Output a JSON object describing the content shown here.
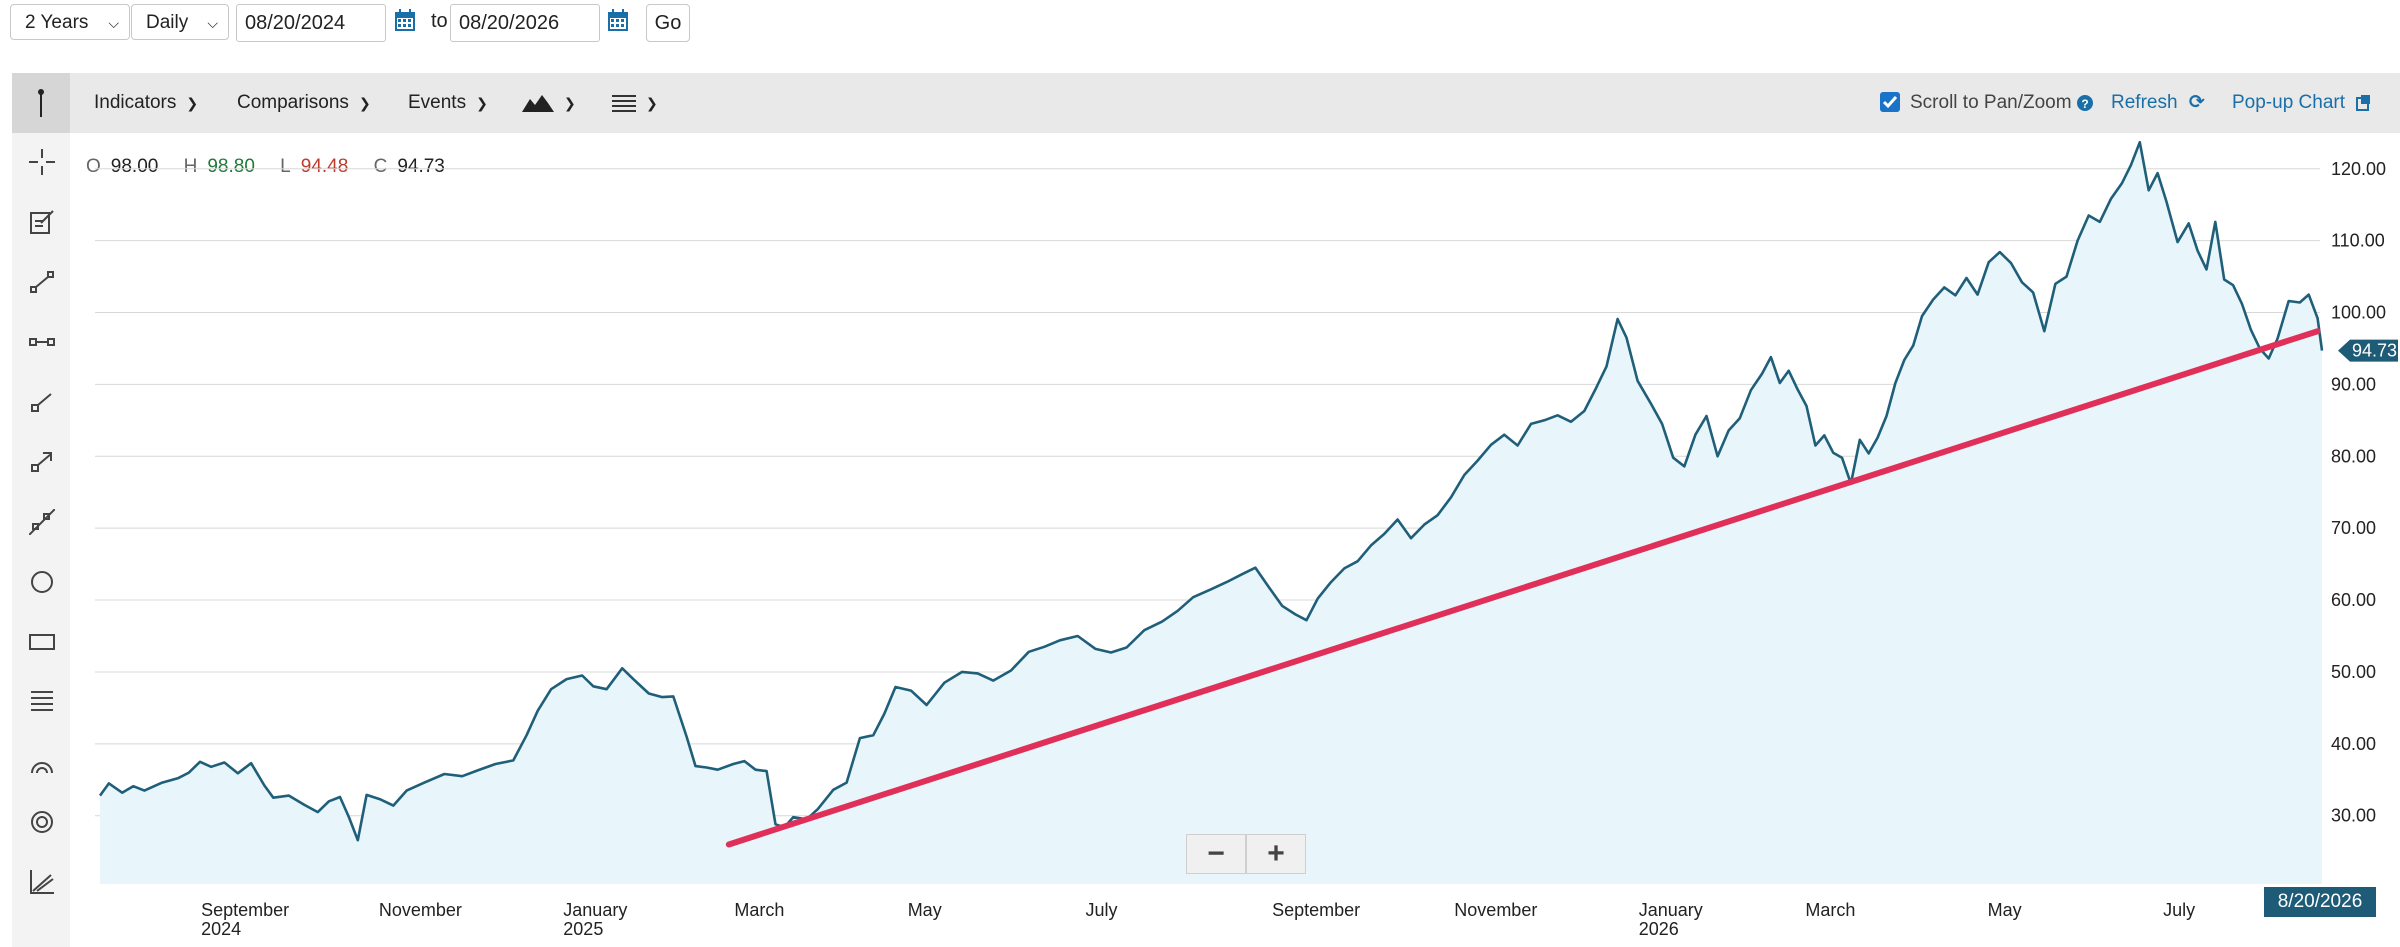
{
  "range_bar": {
    "period": "2 Years",
    "interval": "Daily",
    "start_date": "08/20/2024",
    "to_label": "to",
    "end_date": "08/20/2026",
    "go_label": "Go"
  },
  "toolbar": {
    "indicators": "Indicators",
    "comparisons": "Comparisons",
    "events": "Events",
    "scroll_label": "Scroll to Pan/Zoom",
    "scroll_checked": true,
    "refresh": "Refresh",
    "popup": "Pop-up Chart"
  },
  "sidebar_tools": [
    "pointer-icon",
    "crosshair-icon",
    "note-icon",
    "line-icon",
    "horizontal-segment-icon",
    "ray-icon",
    "arrow-icon",
    "extended-line-icon",
    "circle-icon",
    "rectangle-icon",
    "fibonacci-icon",
    "arc-icon",
    "target-icon",
    "trend-channel-icon"
  ],
  "ohlc": {
    "o_label": "O",
    "open": "98.00",
    "h_label": "H",
    "high": "98.80",
    "l_label": "L",
    "low": "94.48",
    "c_label": "C",
    "close": "94.73",
    "high_color": "#1f7a3a",
    "low_color": "#c0392b"
  },
  "last_price_badge": "94.73",
  "date_badge": "8/20/2026",
  "chart_data": {
    "type": "area",
    "y_ticks": [
      "120.00",
      "110.00",
      "100.00",
      "90.00",
      "80.00",
      "70.00",
      "60.00",
      "50.00",
      "40.00",
      "30.00"
    ],
    "ylim": [
      20.5,
      124
    ],
    "x_ticks": [
      {
        "label": "September",
        "sub": "2024",
        "t": 0.05
      },
      {
        "label": "November",
        "sub": "",
        "t": 0.13
      },
      {
        "label": "January",
        "sub": "2025",
        "t": 0.213
      },
      {
        "label": "March",
        "sub": "",
        "t": 0.29
      },
      {
        "label": "May",
        "sub": "",
        "t": 0.368
      },
      {
        "label": "July",
        "sub": "",
        "t": 0.448
      },
      {
        "label": "September",
        "sub": "",
        "t": 0.532
      },
      {
        "label": "November",
        "sub": "",
        "t": 0.614
      },
      {
        "label": "January",
        "sub": "2026",
        "t": 0.697
      },
      {
        "label": "March",
        "sub": "",
        "t": 0.772
      },
      {
        "label": "May",
        "sub": "",
        "t": 0.854
      },
      {
        "label": "July",
        "sub": "",
        "t": 0.933
      }
    ],
    "series": [
      {
        "line_color": "#1f5f7a",
        "fill_color": "#e8f5fa",
        "points": [
          [
            0,
            32.8
          ],
          [
            0.004,
            34.5
          ],
          [
            0.01,
            33.2
          ],
          [
            0.015,
            34.1
          ],
          [
            0.02,
            33.5
          ],
          [
            0.028,
            34.6
          ],
          [
            0.035,
            35.2
          ],
          [
            0.04,
            36.0
          ],
          [
            0.045,
            37.5
          ],
          [
            0.05,
            36.8
          ],
          [
            0.056,
            37.4
          ],
          [
            0.062,
            35.9
          ],
          [
            0.068,
            37.3
          ],
          [
            0.074,
            34.2
          ],
          [
            0.078,
            32.5
          ],
          [
            0.085,
            32.8
          ],
          [
            0.092,
            31.5
          ],
          [
            0.098,
            30.5
          ],
          [
            0.103,
            32.0
          ],
          [
            0.108,
            32.6
          ],
          [
            0.112,
            29.8
          ],
          [
            0.116,
            26.6
          ],
          [
            0.12,
            32.9
          ],
          [
            0.126,
            32.3
          ],
          [
            0.132,
            31.4
          ],
          [
            0.138,
            33.5
          ],
          [
            0.146,
            34.6
          ],
          [
            0.155,
            35.8
          ],
          [
            0.163,
            35.5
          ],
          [
            0.17,
            36.3
          ],
          [
            0.178,
            37.2
          ],
          [
            0.186,
            37.7
          ],
          [
            0.192,
            41.2
          ],
          [
            0.197,
            44.6
          ],
          [
            0.203,
            47.6
          ],
          [
            0.21,
            49.0
          ],
          [
            0.217,
            49.5
          ],
          [
            0.222,
            48.0
          ],
          [
            0.228,
            47.6
          ],
          [
            0.235,
            50.5
          ],
          [
            0.24,
            49.0
          ],
          [
            0.247,
            47.0
          ],
          [
            0.253,
            46.5
          ],
          [
            0.258,
            46.6
          ],
          [
            0.264,
            41.0
          ],
          [
            0.268,
            36.9
          ],
          [
            0.273,
            36.7
          ],
          [
            0.278,
            36.4
          ],
          [
            0.285,
            37.2
          ],
          [
            0.29,
            37.6
          ],
          [
            0.295,
            36.4
          ],
          [
            0.3,
            36.2
          ],
          [
            0.304,
            28.8
          ],
          [
            0.308,
            28.4
          ],
          [
            0.312,
            29.8
          ],
          [
            0.318,
            29.5
          ],
          [
            0.323,
            30.9
          ],
          [
            0.33,
            33.6
          ],
          [
            0.336,
            34.6
          ],
          [
            0.342,
            40.8
          ],
          [
            0.348,
            41.2
          ],
          [
            0.353,
            44.2
          ],
          [
            0.358,
            47.9
          ],
          [
            0.365,
            47.4
          ],
          [
            0.372,
            45.4
          ],
          [
            0.38,
            48.5
          ],
          [
            0.388,
            50.0
          ],
          [
            0.395,
            49.8
          ],
          [
            0.402,
            48.8
          ],
          [
            0.41,
            50.2
          ],
          [
            0.418,
            52.8
          ],
          [
            0.425,
            53.5
          ],
          [
            0.432,
            54.4
          ],
          [
            0.44,
            55.0
          ],
          [
            0.448,
            53.2
          ],
          [
            0.455,
            52.7
          ],
          [
            0.462,
            53.4
          ],
          [
            0.47,
            55.8
          ],
          [
            0.478,
            57.0
          ],
          [
            0.485,
            58.5
          ],
          [
            0.492,
            60.4
          ],
          [
            0.5,
            61.5
          ],
          [
            0.507,
            62.5
          ],
          [
            0.514,
            63.6
          ],
          [
            0.52,
            64.5
          ],
          [
            0.526,
            61.8
          ],
          [
            0.532,
            59.2
          ],
          [
            0.538,
            58.0
          ],
          [
            0.543,
            57.2
          ],
          [
            0.548,
            60.2
          ],
          [
            0.554,
            62.5
          ],
          [
            0.56,
            64.4
          ],
          [
            0.566,
            65.4
          ],
          [
            0.572,
            67.6
          ],
          [
            0.578,
            69.2
          ],
          [
            0.584,
            71.2
          ],
          [
            0.59,
            68.6
          ],
          [
            0.596,
            70.5
          ],
          [
            0.602,
            71.8
          ],
          [
            0.608,
            74.3
          ],
          [
            0.614,
            77.4
          ],
          [
            0.62,
            79.4
          ],
          [
            0.626,
            81.6
          ],
          [
            0.632,
            83.0
          ],
          [
            0.638,
            81.5
          ],
          [
            0.644,
            84.5
          ],
          [
            0.65,
            85.0
          ],
          [
            0.656,
            85.7
          ],
          [
            0.662,
            84.8
          ],
          [
            0.668,
            86.3
          ],
          [
            0.673,
            89.3
          ],
          [
            0.678,
            92.5
          ],
          [
            0.683,
            99.1
          ],
          [
            0.687,
            96.5
          ],
          [
            0.692,
            90.5
          ],
          [
            0.698,
            87.3
          ],
          [
            0.703,
            84.5
          ],
          [
            0.708,
            79.8
          ],
          [
            0.713,
            78.6
          ],
          [
            0.718,
            83.0
          ],
          [
            0.723,
            85.6
          ],
          [
            0.728,
            80.0
          ],
          [
            0.733,
            83.6
          ],
          [
            0.738,
            85.3
          ],
          [
            0.743,
            89.2
          ],
          [
            0.748,
            91.5
          ],
          [
            0.752,
            93.8
          ],
          [
            0.756,
            90.2
          ],
          [
            0.76,
            91.9
          ],
          [
            0.764,
            89.3
          ],
          [
            0.768,
            87.0
          ],
          [
            0.772,
            81.5
          ],
          [
            0.776,
            82.9
          ],
          [
            0.78,
            80.5
          ],
          [
            0.784,
            79.8
          ],
          [
            0.788,
            76.2
          ],
          [
            0.792,
            82.3
          ],
          [
            0.796,
            80.4
          ],
          [
            0.8,
            82.6
          ],
          [
            0.804,
            85.6
          ],
          [
            0.808,
            90.2
          ],
          [
            0.812,
            93.4
          ],
          [
            0.816,
            95.4
          ],
          [
            0.82,
            99.5
          ],
          [
            0.825,
            101.8
          ],
          [
            0.83,
            103.5
          ],
          [
            0.835,
            102.4
          ],
          [
            0.84,
            104.8
          ],
          [
            0.845,
            102.5
          ],
          [
            0.85,
            107.0
          ],
          [
            0.855,
            108.4
          ],
          [
            0.86,
            106.9
          ],
          [
            0.865,
            104.2
          ],
          [
            0.87,
            102.8
          ],
          [
            0.875,
            97.4
          ],
          [
            0.88,
            104.0
          ],
          [
            0.885,
            105.0
          ],
          [
            0.89,
            110.0
          ],
          [
            0.895,
            113.5
          ],
          [
            0.9,
            112.6
          ],
          [
            0.905,
            115.8
          ],
          [
            0.91,
            118.0
          ],
          [
            0.914,
            120.5
          ],
          [
            0.918,
            123.7
          ],
          [
            0.922,
            117.0
          ],
          [
            0.926,
            119.4
          ],
          [
            0.93,
            115.4
          ],
          [
            0.935,
            109.8
          ],
          [
            0.94,
            112.4
          ],
          [
            0.944,
            108.6
          ],
          [
            0.948,
            106.0
          ],
          [
            0.952,
            112.6
          ],
          [
            0.956,
            104.6
          ],
          [
            0.96,
            103.8
          ],
          [
            0.964,
            101.2
          ],
          [
            0.968,
            97.6
          ],
          [
            0.972,
            95.0
          ],
          [
            0.976,
            93.6
          ],
          [
            0.98,
            96.4
          ],
          [
            0.985,
            101.6
          ],
          [
            0.99,
            101.4
          ],
          [
            0.994,
            102.5
          ],
          [
            0.998,
            99.2
          ],
          [
            1.0,
            94.7
          ]
        ]
      }
    ],
    "trendline": {
      "color": "#e0305a",
      "from": [
        0.283,
        26.0
      ],
      "to": [
        0.998,
        97.4
      ]
    }
  }
}
